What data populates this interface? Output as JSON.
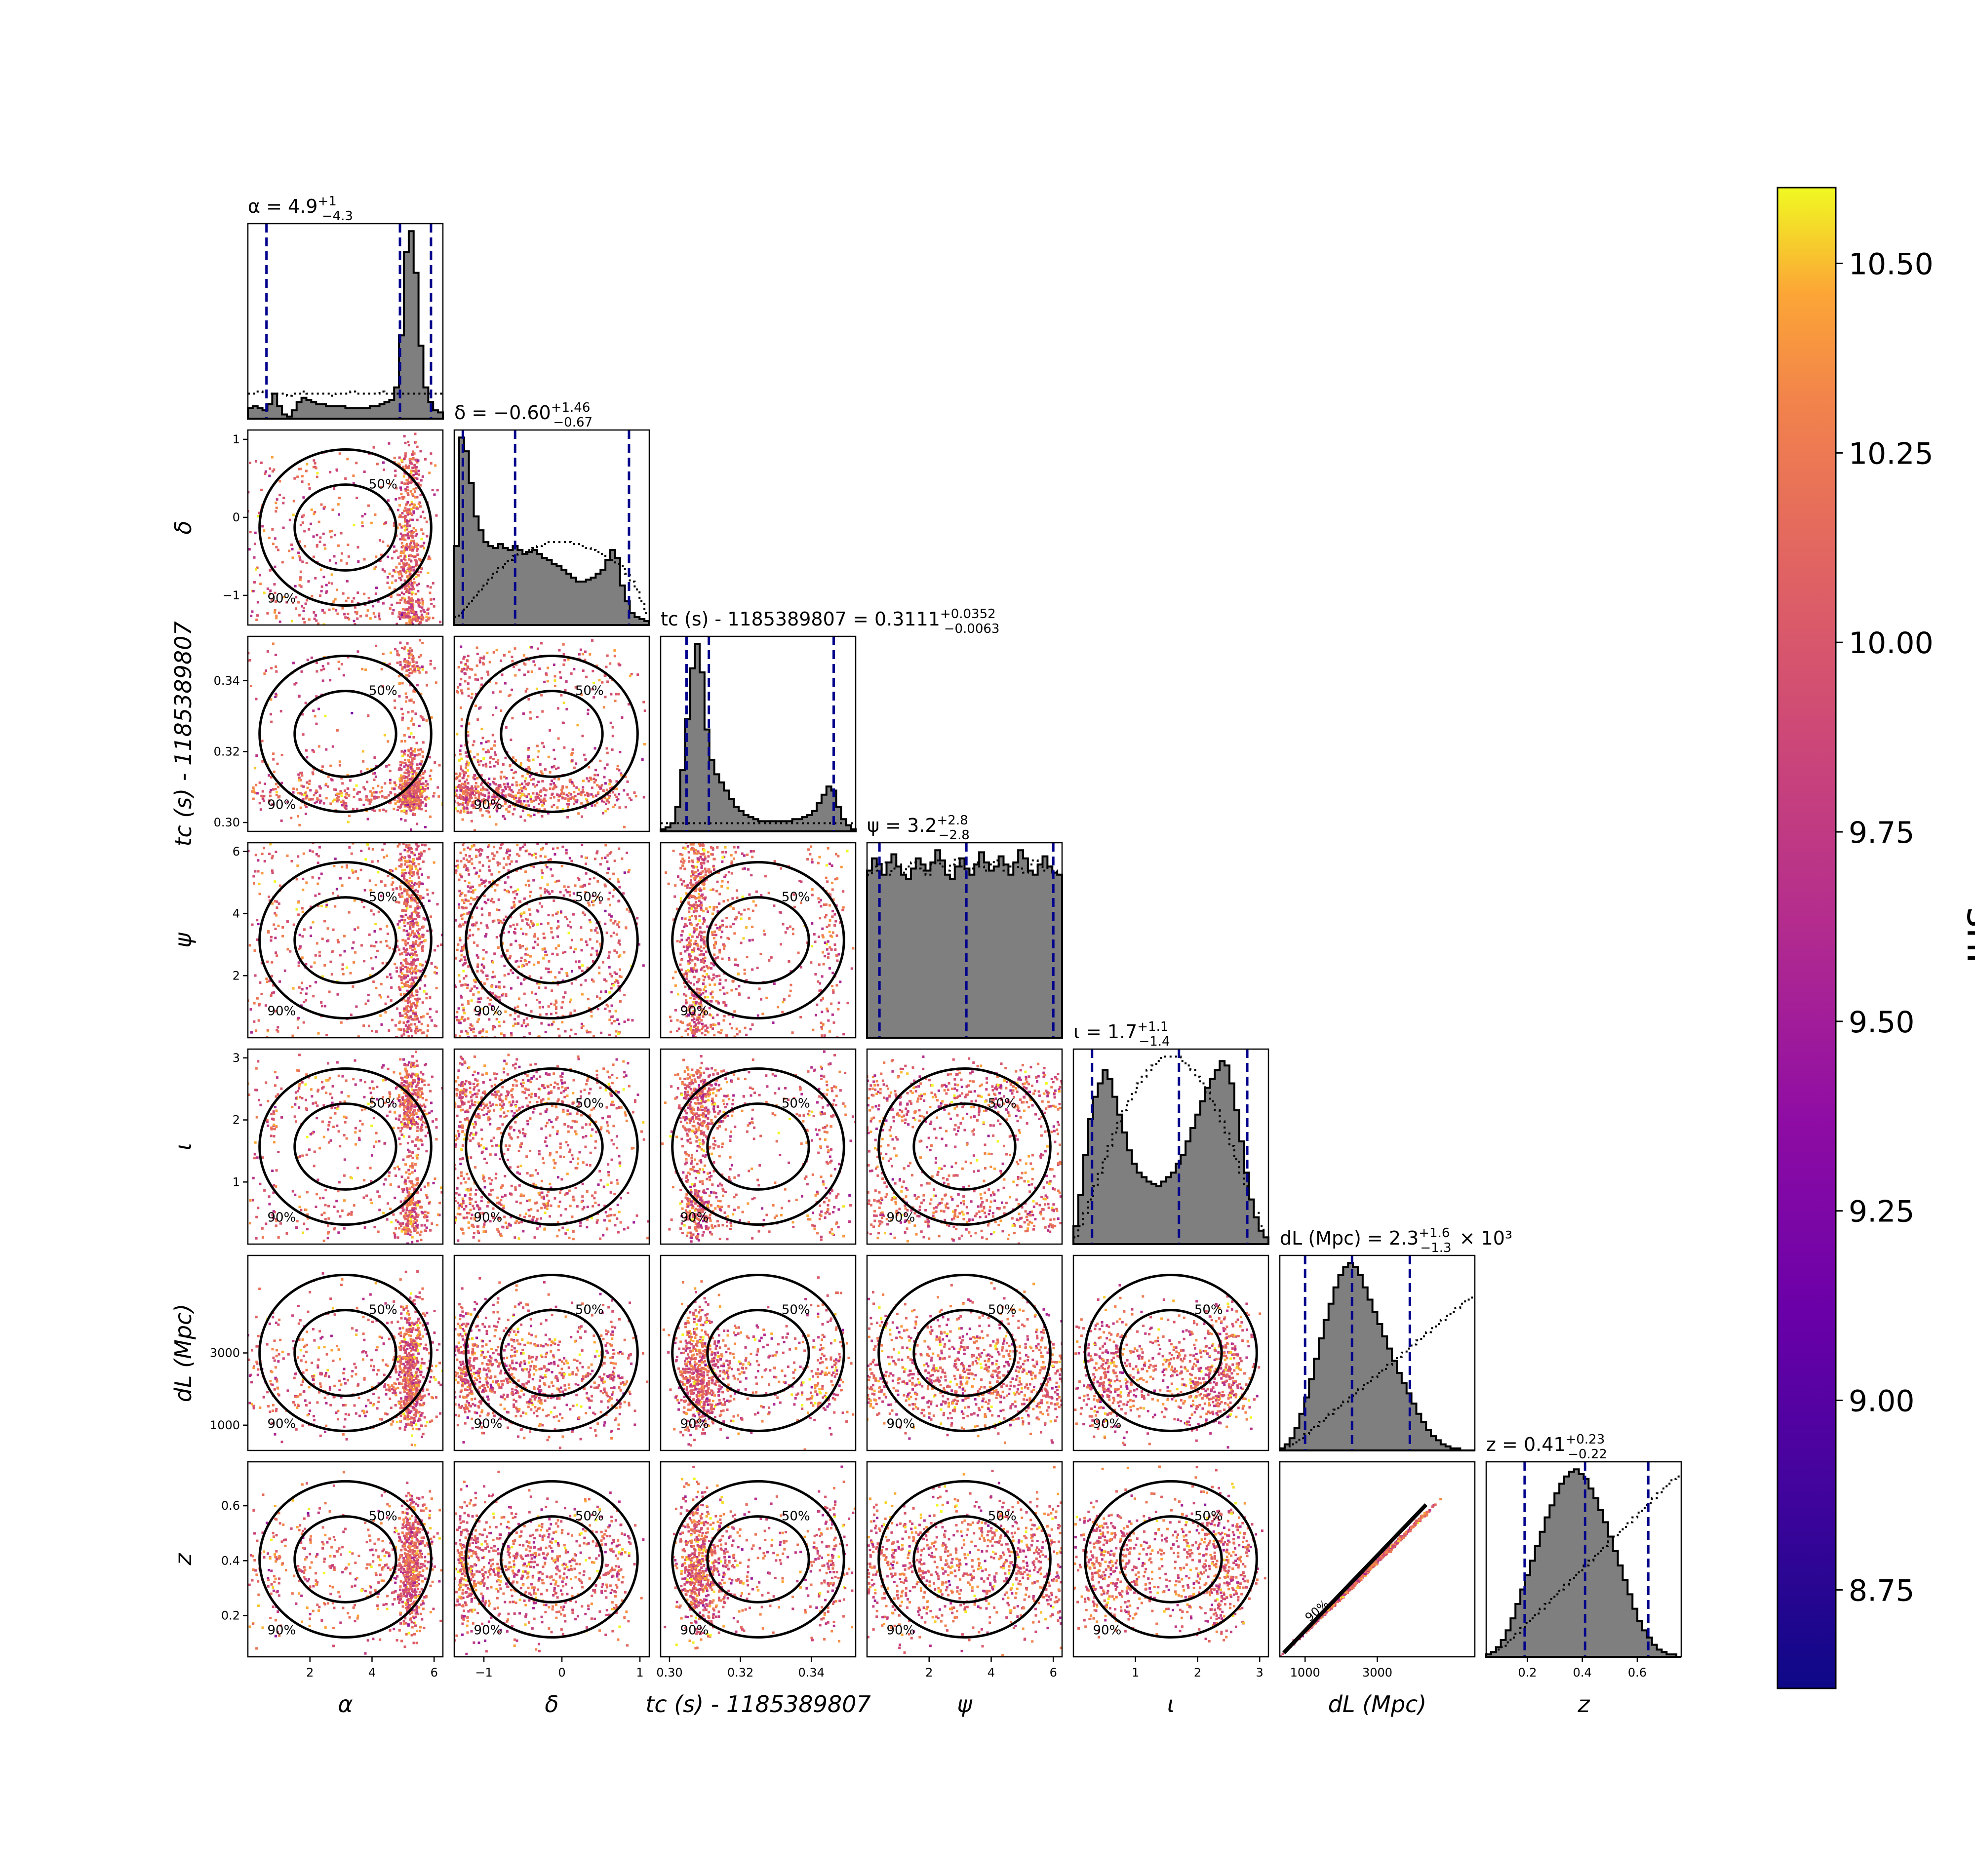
{
  "chart_data": {
    "type": "corner",
    "parameters": [
      {
        "key": "alpha",
        "label": "α",
        "title_name": "α",
        "median": "4.9",
        "plus": "+1",
        "minus": "−4.3",
        "unit_suffix": "",
        "range": [
          0.0,
          6.283
        ],
        "ticks": [
          2,
          4,
          6
        ],
        "tick_labels": [
          "2",
          "4",
          "6"
        ],
        "quantiles": [
          0.6,
          4.9,
          5.9
        ],
        "hist": [
          5,
          6,
          5,
          4,
          7,
          12,
          6,
          2,
          1,
          4,
          8,
          10,
          9,
          8,
          7,
          7,
          6,
          6,
          6,
          6,
          5,
          5,
          5,
          5,
          5,
          6,
          6,
          7,
          8,
          9,
          15,
          40,
          80,
          90,
          70,
          35,
          15,
          8,
          4,
          3
        ],
        "prior": [
          12,
          12,
          13,
          12,
          12,
          12,
          12,
          12,
          11,
          12,
          12,
          13,
          12,
          12,
          12,
          12,
          12,
          11,
          12,
          12,
          12,
          13,
          12,
          12,
          12,
          12,
          12,
          13,
          12,
          12,
          12,
          12,
          12,
          12,
          12,
          12,
          12,
          12,
          12,
          12
        ]
      },
      {
        "key": "delta",
        "label": "δ",
        "title_name": "δ",
        "median": "−0.60",
        "plus": "+1.46",
        "minus": "−0.67",
        "unit_suffix": "",
        "range": [
          -1.38,
          1.12
        ],
        "ticks": [
          -1,
          0,
          1
        ],
        "tick_labels": [
          "−1",
          "0",
          "1"
        ],
        "quantiles": [
          -1.27,
          -0.6,
          0.86
        ],
        "hist": [
          40,
          95,
          88,
          72,
          55,
          48,
          42,
          40,
          39,
          41,
          39,
          38,
          40,
          38,
          36,
          37,
          38,
          36,
          34,
          33,
          31,
          30,
          28,
          26,
          24,
          22,
          22,
          23,
          24,
          26,
          28,
          33,
          38,
          34,
          20,
          12,
          6,
          4,
          3,
          2
        ],
        "prior": [
          4,
          6,
          9,
          12,
          15,
          18,
          21,
          24,
          27,
          29,
          31,
          33,
          35,
          36,
          37,
          38,
          39,
          40,
          41,
          42,
          42,
          42,
          42,
          42,
          41,
          41,
          40,
          39,
          38,
          37,
          36,
          35,
          33,
          31,
          30,
          26,
          22,
          18,
          12,
          6
        ]
      },
      {
        "key": "tc",
        "label": "t_c (s) - 1185389807",
        "title_name": "t_c (s) - 1185389807",
        "median": "0.3111",
        "plus": "+0.0352",
        "minus": "−0.0063",
        "unit_suffix": "",
        "range": [
          0.2975,
          0.3525
        ],
        "ticks": [
          0.3,
          0.32,
          0.34
        ],
        "tick_labels": [
          "0.30",
          "0.32",
          "0.34"
        ],
        "quantiles": [
          0.3048,
          0.3111,
          0.3463
        ],
        "hist": [
          1,
          2,
          4,
          12,
          30,
          55,
          80,
          92,
          78,
          50,
          35,
          28,
          24,
          20,
          16,
          12,
          10,
          8,
          7,
          6,
          5,
          5,
          5,
          5,
          5,
          5,
          5,
          6,
          6,
          7,
          8,
          10,
          14,
          18,
          22,
          20,
          12,
          6,
          3,
          1
        ],
        "prior": [
          4,
          4,
          4,
          4,
          4,
          4,
          4,
          4,
          4,
          4,
          4,
          4,
          4,
          4,
          4,
          4,
          4,
          4,
          4,
          4,
          4,
          4,
          4,
          4,
          4,
          4,
          4,
          4,
          4,
          4,
          4,
          4,
          4,
          4,
          4,
          4,
          4,
          4,
          4,
          4
        ]
      },
      {
        "key": "psi",
        "label": "ψ",
        "title_name": "ψ",
        "median": "3.2",
        "plus": "+2.8",
        "minus": "−2.8",
        "unit_suffix": "",
        "range": [
          0.0,
          6.283
        ],
        "ticks": [
          2,
          4,
          6
        ],
        "tick_labels": [
          "2",
          "4",
          "6"
        ],
        "quantiles": [
          0.4,
          3.2,
          6.0
        ],
        "hist": [
          82,
          88,
          85,
          80,
          86,
          90,
          84,
          80,
          78,
          83,
          88,
          85,
          82,
          86,
          92,
          87,
          80,
          78,
          84,
          88,
          83,
          80,
          85,
          91,
          86,
          82,
          84,
          89,
          85,
          80,
          86,
          92,
          88,
          82,
          80,
          85,
          89,
          84,
          81,
          80
        ],
        "prior": [
          80,
          84,
          82,
          86,
          80,
          83,
          85,
          81,
          84,
          86,
          83,
          82,
          80,
          85,
          87,
          84,
          82,
          85,
          88,
          84,
          81,
          83,
          86,
          84,
          82,
          85,
          87,
          85,
          82,
          84,
          86,
          83,
          81,
          85,
          87,
          84,
          82,
          84,
          82,
          80
        ]
      },
      {
        "key": "iota",
        "label": "ι",
        "title_name": "ι",
        "median": "1.7",
        "plus": "+1.1",
        "minus": "−1.4",
        "unit_suffix": "",
        "range": [
          0.0,
          3.1416
        ],
        "ticks": [
          1,
          2,
          3
        ],
        "tick_labels": [
          "1",
          "2",
          "3"
        ],
        "quantiles": [
          0.3,
          1.7,
          2.8
        ],
        "hist": [
          8,
          22,
          40,
          56,
          66,
          72,
          78,
          74,
          66,
          58,
          50,
          42,
          36,
          32,
          30,
          28,
          27,
          26,
          28,
          30,
          32,
          36,
          40,
          46,
          52,
          58,
          64,
          70,
          74,
          78,
          82,
          80,
          72,
          60,
          46,
          32,
          20,
          12,
          6,
          3
        ],
        "prior": [
          3,
          8,
          14,
          20,
          26,
          32,
          38,
          44,
          50,
          55,
          60,
          64,
          68,
          72,
          75,
          78,
          80,
          82,
          84,
          84,
          84,
          84,
          82,
          80,
          78,
          75,
          72,
          68,
          64,
          60,
          55,
          50,
          44,
          38,
          32,
          26,
          20,
          14,
          8,
          3
        ]
      },
      {
        "key": "dl",
        "label": "d_L (Mpc)",
        "title_name": "d_L (Mpc)",
        "median": "2.3",
        "plus": "+1.6",
        "minus": "−1.3",
        "unit_suffix": " × 10³",
        "range": [
          300,
          5700
        ],
        "ticks": [
          1000,
          3000
        ],
        "tick_labels": [
          "1000",
          "3000"
        ],
        "quantiles": [
          1000,
          2300,
          3900
        ],
        "hist": [
          1,
          3,
          6,
          11,
          18,
          26,
          35,
          45,
          55,
          64,
          72,
          80,
          86,
          90,
          92,
          90,
          86,
          80,
          74,
          68,
          62,
          56,
          50,
          44,
          38,
          33,
          28,
          23,
          18,
          14,
          10,
          7,
          5,
          3,
          2,
          1,
          1,
          0,
          0,
          0
        ],
        "prior": [
          1,
          2,
          3,
          4,
          6,
          8,
          10,
          12,
          14,
          16,
          18,
          20,
          22,
          24,
          26,
          28,
          30,
          32,
          34,
          36,
          38,
          40,
          42,
          44,
          46,
          48,
          50,
          52,
          54,
          56,
          58,
          60,
          62,
          64,
          66,
          68,
          70,
          72,
          74,
          75
        ]
      },
      {
        "key": "z",
        "label": "z",
        "title_name": "z",
        "median": "0.41",
        "plus": "+0.23",
        "minus": "−0.22",
        "unit_suffix": "",
        "range": [
          0.05,
          0.76
        ],
        "ticks": [
          0.2,
          0.4,
          0.6
        ],
        "tick_labels": [
          "0.2",
          "0.4",
          "0.6"
        ],
        "quantiles": [
          0.19,
          0.41,
          0.64
        ],
        "hist": [
          1,
          2,
          4,
          7,
          11,
          16,
          22,
          28,
          34,
          40,
          46,
          52,
          58,
          63,
          68,
          72,
          75,
          77,
          78,
          76,
          74,
          70,
          66,
          61,
          56,
          50,
          44,
          38,
          32,
          26,
          20,
          15,
          11,
          8,
          5,
          3,
          2,
          1,
          1,
          0
        ],
        "prior": [
          1,
          2,
          3,
          4,
          6,
          8,
          10,
          12,
          14,
          16,
          18,
          20,
          22,
          24,
          26,
          28,
          30,
          32,
          34,
          36,
          38,
          40,
          42,
          44,
          46,
          48,
          50,
          52,
          54,
          56,
          58,
          60,
          62,
          64,
          66,
          68,
          70,
          72,
          74,
          75
        ]
      }
    ],
    "contour_labels": [
      "50%",
      "90%"
    ],
    "colorbar": {
      "label": "snr",
      "min": 8.62,
      "max": 10.6,
      "ticks": [
        8.75,
        9.0,
        9.25,
        9.5,
        9.75,
        10.0,
        10.25,
        10.5
      ],
      "tick_labels": [
        "8.75",
        "9.00",
        "9.25",
        "9.50",
        "9.75",
        "10.00",
        "10.25",
        "10.50"
      ],
      "colormap": "plasma"
    },
    "colors": {
      "hist_fill": "#7f7f7f",
      "quantile_line": "#00008b",
      "contour": "#000000",
      "scatter_low": "#0d0887",
      "scatter_mid": "#cc4778",
      "scatter_high": "#f0f921"
    }
  }
}
